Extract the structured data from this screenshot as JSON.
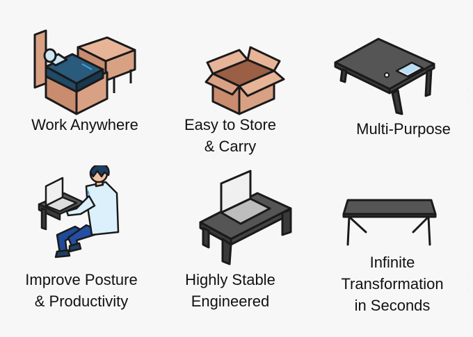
{
  "features": [
    {
      "id": "work-anywhere",
      "icon": "bed-and-nightstand-icon",
      "lines": [
        "Work Anywhere"
      ]
    },
    {
      "id": "easy-to-store",
      "icon": "cardboard-box-icon",
      "lines": [
        "Easy to Store",
        "& Carry"
      ]
    },
    {
      "id": "multi-purpose",
      "icon": "desk-with-tablet-icon",
      "lines": [
        "Multi-Purpose"
      ]
    },
    {
      "id": "improve-posture",
      "icon": "person-working-on-laptop-icon",
      "lines": [
        "Improve Posture",
        "& Productivity"
      ]
    },
    {
      "id": "highly-stable",
      "icon": "desk-with-laptop-icon",
      "lines": [
        "Highly Stable",
        "Engineered"
      ]
    },
    {
      "id": "infinite-transformation",
      "icon": "folding-table-icon",
      "lines": [
        "Infinite",
        "Transformation",
        "in Seconds"
      ]
    }
  ],
  "colors": {
    "outline": "#1a1a1a",
    "wood": "#d9a184",
    "wood_dark": "#b9785c",
    "mattress": "#1f4a68",
    "pillow": "#cfe7f4",
    "desk_top": "#555555",
    "desk_side": "#3a3a3a",
    "screen": "#f0f0f0",
    "shirt": "#dcf0fb",
    "pants": "#1f4a9a",
    "skin": "#f2c2a0",
    "hair": "#1e3f63"
  }
}
